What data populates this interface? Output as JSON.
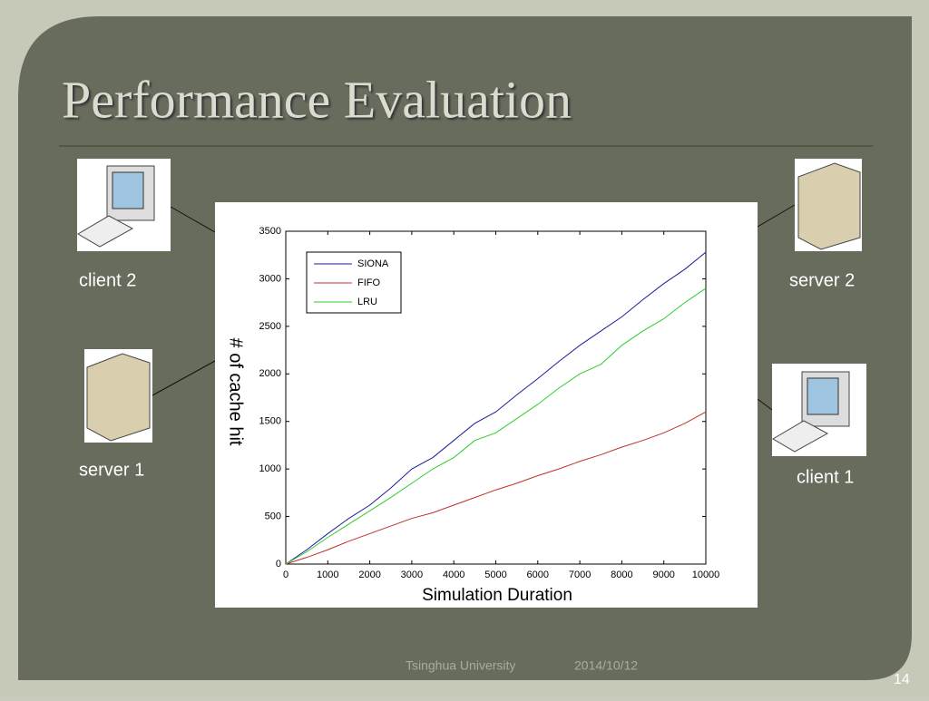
{
  "title": "Performance Evaluation",
  "nodes": [
    {
      "label": "client 2"
    },
    {
      "label": "server 2"
    },
    {
      "label": "server 1"
    },
    {
      "label": "client 1"
    }
  ],
  "footer": {
    "org": "Tsinghua University",
    "date": "2014/10/12",
    "page": "14"
  },
  "chart_data": {
    "type": "line",
    "x_label": "Simulation Duration",
    "y_label": "# of cache hit",
    "x": [
      0,
      500,
      1000,
      1500,
      2000,
      2500,
      3000,
      3500,
      4000,
      4500,
      5000,
      5500,
      6000,
      6500,
      7000,
      7500,
      8000,
      8500,
      9000,
      9500,
      10000
    ],
    "series": [
      {
        "name": "SIONA",
        "color": "#1c1c9c",
        "values": [
          0,
          150,
          320,
          480,
          620,
          800,
          1000,
          1120,
          1300,
          1480,
          1600,
          1780,
          1950,
          2130,
          2300,
          2450,
          2600,
          2780,
          2950,
          3100,
          3280
        ]
      },
      {
        "name": "FIFO",
        "color": "#c0302a",
        "values": [
          0,
          70,
          150,
          240,
          320,
          400,
          480,
          540,
          620,
          700,
          780,
          850,
          930,
          1000,
          1080,
          1150,
          1230,
          1300,
          1380,
          1480,
          1600
        ]
      },
      {
        "name": "LRU",
        "color": "#2ecc2e",
        "values": [
          0,
          130,
          280,
          420,
          560,
          700,
          850,
          1000,
          1120,
          1300,
          1380,
          1530,
          1680,
          1850,
          2000,
          2100,
          2300,
          2450,
          2580,
          2750,
          2900
        ]
      }
    ],
    "xlim": [
      0,
      10000
    ],
    "xticks": [
      0,
      1000,
      2000,
      3000,
      4000,
      5000,
      6000,
      7000,
      8000,
      9000,
      10000
    ],
    "ylim": [
      0,
      3500
    ],
    "yticks": [
      0,
      500,
      1000,
      1500,
      2000,
      2500,
      3000,
      3500
    ],
    "legend": "upper-left",
    "grid": false
  }
}
